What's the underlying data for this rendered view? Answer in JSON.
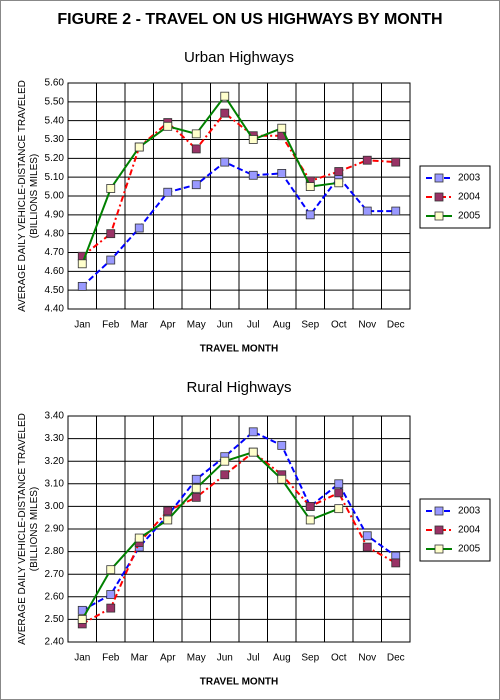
{
  "title": "FIGURE 2 - TRAVEL ON US HIGHWAYS BY MONTH",
  "chart_data": [
    {
      "type": "line",
      "title": "Urban Highways",
      "xlabel": "TRAVEL MONTH",
      "ylabel_lines": [
        "AVERAGE DAILY VEHICLE-DISTANCE TRAVELED",
        "(BILLIONS MILES)"
      ],
      "categories": [
        "Jan",
        "Feb",
        "Mar",
        "Apr",
        "May",
        "Jun",
        "Jul",
        "Aug",
        "Sep",
        "Oct",
        "Nov",
        "Dec"
      ],
      "series": [
        {
          "name": "2003",
          "color": "#0000ff",
          "marker_color": "#9999ff",
          "dash": "dashed",
          "values": [
            4.52,
            4.66,
            4.83,
            5.02,
            5.06,
            5.18,
            5.11,
            5.12,
            4.9,
            5.1,
            4.92,
            4.92
          ]
        },
        {
          "name": "2004",
          "color": "#ff0000",
          "marker_color": "#993366",
          "dash": "dashdot",
          "values": [
            4.68,
            4.8,
            5.26,
            5.39,
            5.25,
            5.44,
            5.32,
            5.32,
            5.08,
            5.13,
            5.19,
            5.18
          ]
        },
        {
          "name": "2005",
          "color": "#008000",
          "marker_color": "#ffffcc",
          "dash": "solid",
          "values": [
            4.64,
            5.04,
            5.26,
            5.37,
            5.33,
            5.53,
            5.3,
            5.36,
            5.05,
            5.07,
            null,
            null
          ]
        }
      ],
      "ylim": [
        4.4,
        5.6
      ],
      "yticks": [
        {
          "value": 4.4,
          "label": "4.40"
        },
        {
          "value": 4.5,
          "label": "4.50"
        },
        {
          "value": 4.6,
          "label": "4.60"
        },
        {
          "value": 4.7,
          "label": "4.70"
        },
        {
          "value": 4.8,
          "label": "4.80"
        },
        {
          "value": 4.9,
          "label": "4.90"
        },
        {
          "value": 5.0,
          "label": "5.00"
        },
        {
          "value": 5.1,
          "label": "5.10"
        },
        {
          "value": 5.2,
          "label": "5.20"
        },
        {
          "value": 5.3,
          "label": "5.30"
        },
        {
          "value": 5.4,
          "label": "5.40"
        },
        {
          "value": 5.5,
          "label": "5.50"
        },
        {
          "value": 5.6,
          "label": "5.60"
        }
      ],
      "grid": true,
      "legend": "right"
    },
    {
      "type": "line",
      "title": "Rural Highways",
      "xlabel": "TRAVEL MONTH",
      "ylabel_lines": [
        "AVERAGE DAILY VEHICLE-DISTANCE TRAVELED",
        "(BILLIONS MILES)"
      ],
      "categories": [
        "Jan",
        "Feb",
        "Mar",
        "Apr",
        "May",
        "Jun",
        "Jul",
        "Aug",
        "Sep",
        "Oct",
        "Nov",
        "Dec"
      ],
      "series": [
        {
          "name": "2003",
          "color": "#0000ff",
          "marker_color": "#9999ff",
          "dash": "dashed",
          "values": [
            2.54,
            2.61,
            2.82,
            2.96,
            3.12,
            3.22,
            3.33,
            3.27,
            3.0,
            3.1,
            2.87,
            2.78
          ]
        },
        {
          "name": "2004",
          "color": "#ff0000",
          "marker_color": "#993366",
          "dash": "dashdot",
          "values": [
            2.48,
            2.55,
            2.84,
            2.98,
            3.04,
            3.14,
            3.24,
            3.14,
            3.0,
            3.06,
            2.82,
            2.75
          ]
        },
        {
          "name": "2005",
          "color": "#008000",
          "marker_color": "#ffffcc",
          "dash": "solid",
          "values": [
            2.5,
            2.72,
            2.86,
            2.94,
            3.08,
            3.2,
            3.24,
            3.12,
            2.94,
            2.99,
            null,
            null
          ]
        }
      ],
      "ylim": [
        2.4,
        3.4
      ],
      "yticks": [
        {
          "value": 2.4,
          "label": "2.40"
        },
        {
          "value": 2.5,
          "label": "2.50"
        },
        {
          "value": 2.6,
          "label": "2.60"
        },
        {
          "value": 2.7,
          "label": "2.70"
        },
        {
          "value": 2.8,
          "label": "2.80"
        },
        {
          "value": 2.9,
          "label": "2.90"
        },
        {
          "value": 3.0,
          "label": "3.00"
        },
        {
          "value": 3.1,
          "label": "3.10"
        },
        {
          "value": 3.2,
          "label": "3.20"
        },
        {
          "value": 3.3,
          "label": "3.30"
        },
        {
          "value": 3.4,
          "label": "3.40"
        }
      ],
      "grid": true,
      "legend": "right"
    }
  ]
}
